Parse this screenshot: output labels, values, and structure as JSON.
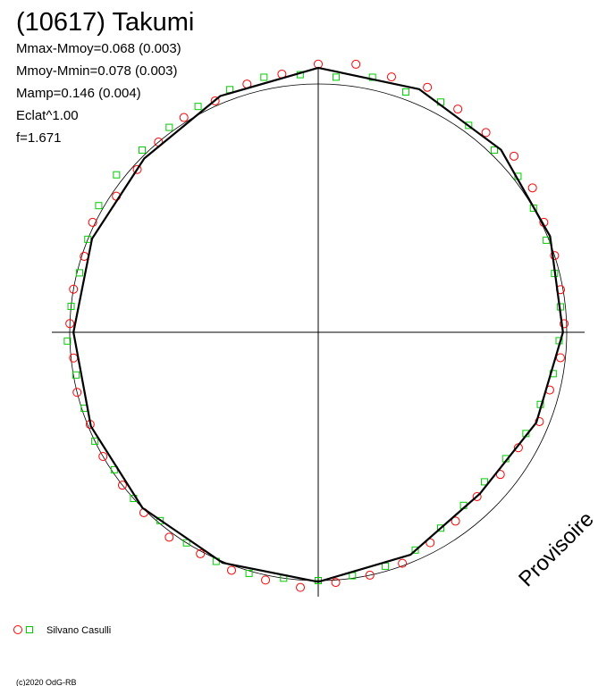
{
  "chart_data": {
    "type": "polar",
    "title": "(10617) Takumi",
    "annotations": [
      "Mmax-Mmoy=0.068 (0.003)",
      "Mmoy-Mmin=0.078 (0.003)",
      "Mamp=0.146 (0.004)",
      "Eclat^1.00",
      "f=1.671"
    ],
    "watermark": "Provisoire",
    "credit": "(c)2020 OdG-RB",
    "reference_circle": 1,
    "fit": {
      "color": "#000000",
      "x": [
        0,
        22.5,
        45,
        67.5,
        90,
        112.5,
        135,
        157.5,
        180,
        202.5,
        225,
        247.5,
        270,
        292.5,
        315,
        337.5
      ],
      "values": [
        1.065,
        1.06,
        1.04,
        1.01,
        0.985,
        0.95,
        0.92,
        0.97,
        1.005,
        1.005,
        1.0,
        0.99,
        0.985,
        0.985,
        0.99,
        1.03
      ]
    },
    "series": [
      {
        "name": "Silvano Casulli",
        "color": "#ff0000",
        "marker": "circle",
        "x": [
          0,
          8,
          16,
          24,
          32,
          40,
          48,
          56,
          64,
          72,
          80,
          88,
          96,
          104,
          112,
          120,
          128,
          136,
          144,
          152,
          160,
          168,
          176,
          184,
          192,
          200,
          208,
          216,
          224,
          232,
          240,
          248,
          256,
          264,
          272,
          280,
          288,
          296,
          304,
          312,
          320,
          328,
          336,
          344,
          352
        ],
        "values": [
          1.08,
          1.09,
          1.07,
          1.08,
          1.06,
          1.05,
          1.06,
          1.04,
          1.01,
          1.0,
          0.99,
          0.99,
          0.98,
          0.96,
          0.96,
          0.93,
          0.93,
          0.92,
          0.94,
          0.96,
          0.99,
          1.0,
          1.01,
          1.03,
          1.02,
          1.02,
          1.01,
          1.02,
          1.01,
          1.0,
          1.0,
          0.99,
          1.0,
          0.99,
          1.0,
          1.0,
          0.99,
          1.01,
          0.98,
          0.98,
          1.0,
          1.02,
          1.02,
          1.04,
          1.05
        ]
      },
      {
        "color": "#00cc00",
        "marker": "square",
        "x": [
          4,
          12,
          20,
          28,
          36,
          44,
          52,
          60,
          68,
          76,
          84,
          92,
          100,
          108,
          116,
          124,
          132,
          140,
          148,
          156,
          164,
          172,
          180,
          188,
          196,
          204,
          212,
          220,
          228,
          236,
          244,
          252,
          260,
          268,
          276,
          284,
          292,
          300,
          308,
          316,
          324,
          332,
          340,
          348,
          356
        ],
        "values": [
          1.03,
          1.05,
          1.03,
          1.05,
          1.03,
          1.02,
          1.02,
          1.0,
          0.99,
          0.98,
          0.98,
          0.97,
          0.96,
          0.94,
          0.93,
          0.91,
          0.9,
          0.91,
          0.93,
          0.96,
          0.98,
          0.99,
          1.0,
          1.0,
          1.01,
          1.01,
          1.0,
          0.99,
          1.0,
          0.99,
          1.0,
          0.99,
          0.99,
          1.01,
          1.0,
          0.99,
          1.0,
          1.02,
          1.03,
          1.02,
          1.02,
          1.03,
          1.04,
          1.05,
          1.04
        ]
      }
    ]
  }
}
